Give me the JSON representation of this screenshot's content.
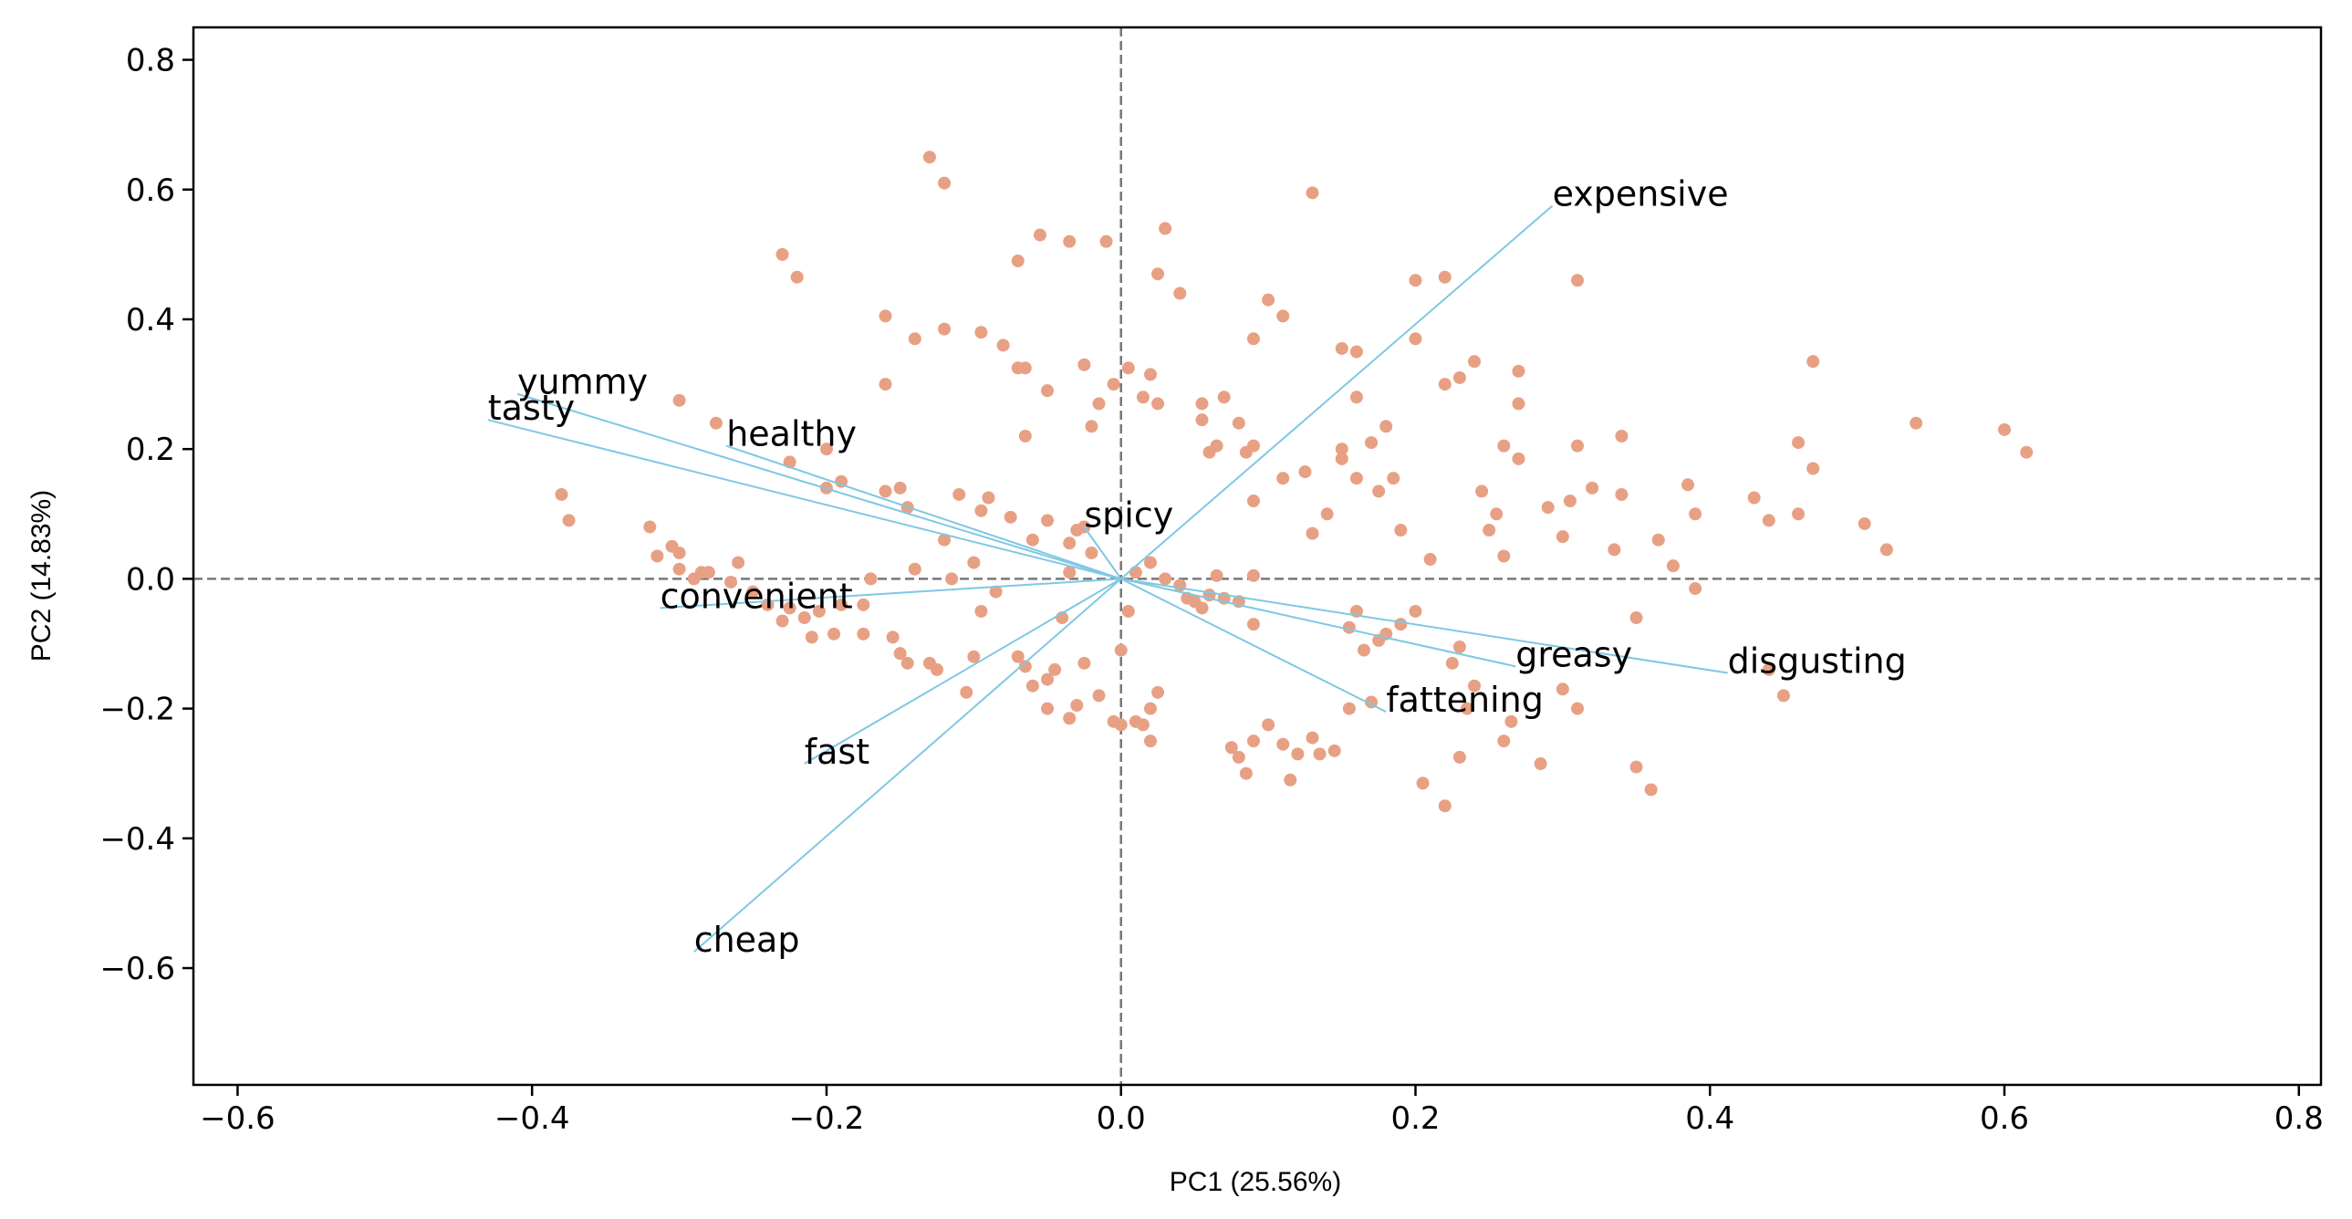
{
  "chart_data": {
    "type": "scatter",
    "title": "",
    "xlabel": "PC1 (25.56%)",
    "ylabel": "PC2 (14.83%)",
    "xlim": [
      -0.63,
      0.815
    ],
    "ylim": [
      -0.78,
      0.85
    ],
    "xticks": [
      -0.6,
      -0.4,
      -0.2,
      0.0,
      0.2,
      0.4,
      0.6,
      0.8
    ],
    "yticks": [
      -0.6,
      -0.4,
      -0.2,
      0.0,
      0.2,
      0.4,
      0.6,
      0.8
    ],
    "xtick_labels": [
      "−0.6",
      "−0.4",
      "−0.2",
      "0.0",
      "0.2",
      "0.4",
      "0.6",
      "0.8"
    ],
    "ytick_labels": [
      "−0.6",
      "−0.4",
      "−0.2",
      "0.0",
      "0.2",
      "0.4",
      "0.6",
      "0.8"
    ],
    "grid": false,
    "reference_lines": {
      "x": 0.0,
      "y": 0.0,
      "style": "dashed",
      "color": "#777777"
    },
    "point_color": "#e8a084",
    "loading_color": "#7ec8e3",
    "loadings": [
      {
        "label": "yummy",
        "x": -0.41,
        "y": 0.285
      },
      {
        "label": "tasty",
        "x": -0.43,
        "y": 0.245
      },
      {
        "label": "healthy",
        "x": -0.268,
        "y": 0.205
      },
      {
        "label": "spicy",
        "x": -0.025,
        "y": 0.08
      },
      {
        "label": "convenient",
        "x": -0.313,
        "y": -0.045
      },
      {
        "label": "fast",
        "x": -0.215,
        "y": -0.285
      },
      {
        "label": "cheap",
        "x": -0.29,
        "y": -0.575
      },
      {
        "label": "expensive",
        "x": 0.293,
        "y": 0.575
      },
      {
        "label": "greasy",
        "x": 0.268,
        "y": -0.135
      },
      {
        "label": "disgusting",
        "x": 0.412,
        "y": -0.145
      },
      {
        "label": "fattening",
        "x": 0.18,
        "y": -0.205
      }
    ],
    "points": [
      [
        -0.13,
        0.65
      ],
      [
        -0.12,
        0.61
      ],
      [
        -0.23,
        0.5
      ],
      [
        -0.22,
        0.465
      ],
      [
        -0.16,
        0.405
      ],
      [
        -0.14,
        0.37
      ],
      [
        -0.12,
        0.385
      ],
      [
        -0.095,
        0.38
      ],
      [
        -0.08,
        0.36
      ],
      [
        -0.07,
        0.325
      ],
      [
        -0.065,
        0.325
      ],
      [
        -0.05,
        0.29
      ],
      [
        -0.065,
        0.22
      ],
      [
        -0.16,
        0.3
      ],
      [
        -0.3,
        0.275
      ],
      [
        -0.275,
        0.24
      ],
      [
        -0.225,
        0.18
      ],
      [
        -0.2,
        0.2
      ],
      [
        -0.19,
        0.15
      ],
      [
        -0.2,
        0.14
      ],
      [
        -0.16,
        0.135
      ],
      [
        -0.15,
        0.14
      ],
      [
        -0.145,
        0.11
      ],
      [
        -0.12,
        0.06
      ],
      [
        -0.11,
        0.13
      ],
      [
        -0.09,
        0.125
      ],
      [
        -0.095,
        0.105
      ],
      [
        -0.075,
        0.095
      ],
      [
        -0.06,
        0.06
      ],
      [
        -0.05,
        0.09
      ],
      [
        -0.035,
        0.055
      ],
      [
        -0.03,
        0.075
      ],
      [
        -0.025,
        0.08
      ],
      [
        -0.02,
        0.04
      ],
      [
        -0.035,
        0.01
      ],
      [
        -0.055,
        0.53
      ],
      [
        -0.035,
        0.52
      ],
      [
        -0.01,
        0.52
      ],
      [
        -0.07,
        0.49
      ],
      [
        -0.025,
        0.33
      ],
      [
        -0.015,
        0.27
      ],
      [
        -0.02,
        0.235
      ],
      [
        -0.005,
        0.3
      ],
      [
        0.005,
        0.325
      ],
      [
        0.015,
        0.28
      ],
      [
        0.02,
        0.315
      ],
      [
        0.025,
        0.27
      ],
      [
        0.03,
        0.54
      ],
      [
        0.025,
        0.47
      ],
      [
        0.04,
        0.44
      ],
      [
        0.055,
        0.27
      ],
      [
        0.055,
        0.245
      ],
      [
        0.065,
        0.205
      ],
      [
        0.06,
        0.195
      ],
      [
        0.07,
        0.28
      ],
      [
        0.08,
        0.24
      ],
      [
        0.085,
        0.195
      ],
      [
        0.09,
        0.205
      ],
      [
        0.09,
        0.37
      ],
      [
        0.1,
        0.43
      ],
      [
        0.11,
        0.405
      ],
      [
        0.13,
        0.595
      ],
      [
        0.15,
        0.355
      ],
      [
        0.16,
        0.35
      ],
      [
        0.16,
        0.28
      ],
      [
        0.17,
        0.21
      ],
      [
        0.18,
        0.235
      ],
      [
        0.185,
        0.155
      ],
      [
        0.175,
        0.135
      ],
      [
        0.16,
        0.155
      ],
      [
        0.15,
        0.2
      ],
      [
        0.15,
        0.185
      ],
      [
        0.125,
        0.165
      ],
      [
        0.11,
        0.155
      ],
      [
        0.09,
        0.12
      ],
      [
        0.13,
        0.07
      ],
      [
        0.14,
        0.1
      ],
      [
        0.2,
        0.46
      ],
      [
        0.2,
        0.37
      ],
      [
        0.22,
        0.465
      ],
      [
        0.23,
        0.31
      ],
      [
        0.22,
        0.3
      ],
      [
        0.24,
        0.335
      ],
      [
        0.27,
        0.32
      ],
      [
        0.27,
        0.27
      ],
      [
        0.26,
        0.205
      ],
      [
        0.27,
        0.185
      ],
      [
        0.245,
        0.135
      ],
      [
        0.255,
        0.1
      ],
      [
        0.25,
        0.075
      ],
      [
        0.26,
        0.035
      ],
      [
        0.21,
        0.03
      ],
      [
        0.19,
        0.075
      ],
      [
        0.31,
        0.46
      ],
      [
        0.31,
        0.205
      ],
      [
        0.32,
        0.14
      ],
      [
        0.305,
        0.12
      ],
      [
        0.29,
        0.11
      ],
      [
        0.3,
        0.065
      ],
      [
        0.335,
        0.045
      ],
      [
        0.34,
        0.22
      ],
      [
        0.34,
        0.13
      ],
      [
        0.365,
        0.06
      ],
      [
        0.375,
        0.02
      ],
      [
        0.39,
        -0.015
      ],
      [
        0.385,
        0.145
      ],
      [
        0.39,
        0.1
      ],
      [
        0.43,
        0.125
      ],
      [
        0.44,
        0.09
      ],
      [
        0.46,
        0.21
      ],
      [
        0.47,
        0.335
      ],
      [
        0.47,
        0.17
      ],
      [
        0.46,
        0.1
      ],
      [
        0.505,
        0.085
      ],
      [
        0.52,
        0.045
      ],
      [
        0.54,
        0.24
      ],
      [
        0.6,
        0.23
      ],
      [
        0.615,
        0.195
      ],
      [
        0.45,
        -0.18
      ],
      [
        0.44,
        -0.14
      ],
      [
        0.35,
        -0.06
      ],
      [
        0.35,
        -0.29
      ],
      [
        0.36,
        -0.325
      ],
      [
        0.31,
        -0.2
      ],
      [
        0.3,
        -0.17
      ],
      [
        0.285,
        -0.285
      ],
      [
        0.26,
        -0.25
      ],
      [
        0.265,
        -0.22
      ],
      [
        0.24,
        -0.165
      ],
      [
        0.235,
        -0.2
      ],
      [
        0.23,
        -0.275
      ],
      [
        0.22,
        -0.35
      ],
      [
        0.205,
        -0.315
      ],
      [
        0.225,
        -0.13
      ],
      [
        0.23,
        -0.105
      ],
      [
        0.2,
        -0.05
      ],
      [
        0.19,
        -0.07
      ],
      [
        0.18,
        -0.085
      ],
      [
        0.175,
        -0.095
      ],
      [
        0.165,
        -0.11
      ],
      [
        0.155,
        -0.075
      ],
      [
        0.16,
        -0.05
      ],
      [
        0.17,
        -0.19
      ],
      [
        0.155,
        -0.2
      ],
      [
        0.145,
        -0.265
      ],
      [
        0.135,
        -0.27
      ],
      [
        0.13,
        -0.245
      ],
      [
        0.115,
        -0.31
      ],
      [
        0.12,
        -0.27
      ],
      [
        0.11,
        -0.255
      ],
      [
        0.1,
        -0.225
      ],
      [
        0.09,
        -0.25
      ],
      [
        0.085,
        -0.3
      ],
      [
        0.08,
        -0.275
      ],
      [
        0.075,
        -0.26
      ],
      [
        0.08,
        -0.035
      ],
      [
        0.09,
        -0.07
      ],
      [
        0.07,
        -0.03
      ],
      [
        0.06,
        -0.025
      ],
      [
        0.05,
        -0.035
      ],
      [
        0.045,
        -0.03
      ],
      [
        0.055,
        -0.045
      ],
      [
        0.04,
        -0.01
      ],
      [
        0.03,
        0.0
      ],
      [
        0.065,
        0.005
      ],
      [
        0.09,
        0.005
      ],
      [
        0.02,
        0.025
      ],
      [
        0.01,
        0.01
      ],
      [
        0.005,
        -0.05
      ],
      [
        0.0,
        -0.11
      ],
      [
        -0.005,
        -0.22
      ],
      [
        0.0,
        -0.225
      ],
      [
        0.01,
        -0.22
      ],
      [
        0.015,
        -0.225
      ],
      [
        0.02,
        -0.25
      ],
      [
        0.025,
        -0.175
      ],
      [
        0.02,
        -0.2
      ],
      [
        -0.015,
        -0.18
      ],
      [
        -0.025,
        -0.13
      ],
      [
        -0.04,
        -0.06
      ],
      [
        -0.045,
        -0.14
      ],
      [
        -0.05,
        -0.155
      ],
      [
        -0.03,
        -0.195
      ],
      [
        -0.035,
        -0.215
      ],
      [
        -0.05,
        -0.2
      ],
      [
        -0.06,
        -0.165
      ],
      [
        -0.065,
        -0.135
      ],
      [
        -0.07,
        -0.12
      ],
      [
        -0.085,
        -0.02
      ],
      [
        -0.095,
        -0.05
      ],
      [
        -0.1,
        -0.12
      ],
      [
        -0.105,
        -0.175
      ],
      [
        -0.125,
        -0.14
      ],
      [
        -0.13,
        -0.13
      ],
      [
        -0.145,
        -0.13
      ],
      [
        -0.15,
        -0.115
      ],
      [
        -0.155,
        -0.09
      ],
      [
        -0.175,
        -0.085
      ],
      [
        -0.195,
        -0.085
      ],
      [
        -0.21,
        -0.09
      ],
      [
        -0.19,
        -0.04
      ],
      [
        -0.175,
        -0.04
      ],
      [
        -0.225,
        -0.045
      ],
      [
        -0.24,
        -0.04
      ],
      [
        -0.25,
        -0.02
      ],
      [
        -0.265,
        -0.005
      ],
      [
        -0.28,
        0.01
      ],
      [
        -0.3,
        0.04
      ],
      [
        -0.29,
        0.0
      ],
      [
        -0.3,
        0.015
      ],
      [
        -0.315,
        0.035
      ],
      [
        -0.32,
        0.08
      ],
      [
        -0.305,
        0.05
      ],
      [
        -0.285,
        0.01
      ],
      [
        -0.26,
        0.025
      ],
      [
        -0.38,
        0.13
      ],
      [
        -0.375,
        0.09
      ],
      [
        -0.23,
        -0.065
      ],
      [
        -0.215,
        -0.06
      ],
      [
        -0.205,
        -0.05
      ],
      [
        -0.17,
        0.0
      ],
      [
        -0.14,
        0.015
      ],
      [
        -0.115,
        0.0
      ],
      [
        -0.1,
        0.025
      ]
    ]
  }
}
